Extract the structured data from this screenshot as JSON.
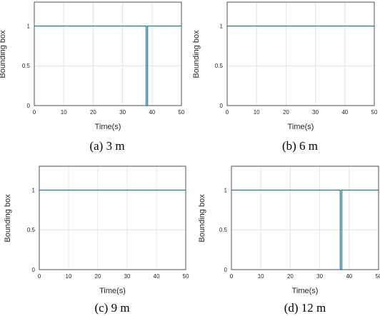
{
  "colors": {
    "line": "#1f7a8c",
    "grid": "#e4e4e4",
    "axis": "#262626"
  },
  "chart_data": [
    {
      "type": "line",
      "caption": "(a) 3 m",
      "xlabel": "Time(s)",
      "ylabel": "Bounding box",
      "xlim": [
        0,
        50
      ],
      "ylim": [
        0,
        1.3
      ],
      "xticks": [
        "0",
        "10",
        "20",
        "30",
        "40",
        "50"
      ],
      "yticks": [
        "0",
        "0.5",
        "1"
      ],
      "grid": true,
      "series": [
        {
          "x": [
            0,
            38.0,
            38.0,
            38.5,
            38.5,
            50
          ],
          "y": [
            1,
            1,
            0,
            0,
            1,
            1
          ]
        }
      ]
    },
    {
      "type": "line",
      "caption": "(b) 6 m",
      "xlabel": "Time(s)",
      "ylabel": "Bounding box",
      "xlim": [
        0,
        50
      ],
      "ylim": [
        0,
        1.3
      ],
      "xticks": [
        "0",
        "10",
        "20",
        "30",
        "40",
        "50"
      ],
      "yticks": [
        "0",
        "0.5",
        "1"
      ],
      "grid": true,
      "series": [
        {
          "x": [
            0,
            50
          ],
          "y": [
            1,
            1
          ]
        }
      ]
    },
    {
      "type": "line",
      "caption": "(c) 9 m",
      "xlabel": "Time(s)",
      "ylabel": "Bounding box",
      "xlim": [
        0,
        50
      ],
      "ylim": [
        0,
        1.3
      ],
      "xticks": [
        "0",
        "10",
        "20",
        "30",
        "40",
        "50"
      ],
      "yticks": [
        "0",
        "0.5",
        "1"
      ],
      "grid": true,
      "series": [
        {
          "x": [
            0,
            50
          ],
          "y": [
            1,
            1
          ]
        }
      ]
    },
    {
      "type": "line",
      "caption": "(d) 12 m",
      "xlabel": "Time(s)",
      "ylabel": "Bounding box",
      "xlim": [
        0,
        50
      ],
      "ylim": [
        0,
        1.3
      ],
      "xticks": [
        "0",
        "10",
        "20",
        "30",
        "40",
        "50"
      ],
      "yticks": [
        "0",
        "0.5",
        "1"
      ],
      "grid": true,
      "series": [
        {
          "x": [
            0,
            37.0,
            37.0,
            37.5,
            37.5,
            50
          ],
          "y": [
            1,
            1,
            0,
            0,
            1,
            1
          ]
        }
      ]
    }
  ]
}
